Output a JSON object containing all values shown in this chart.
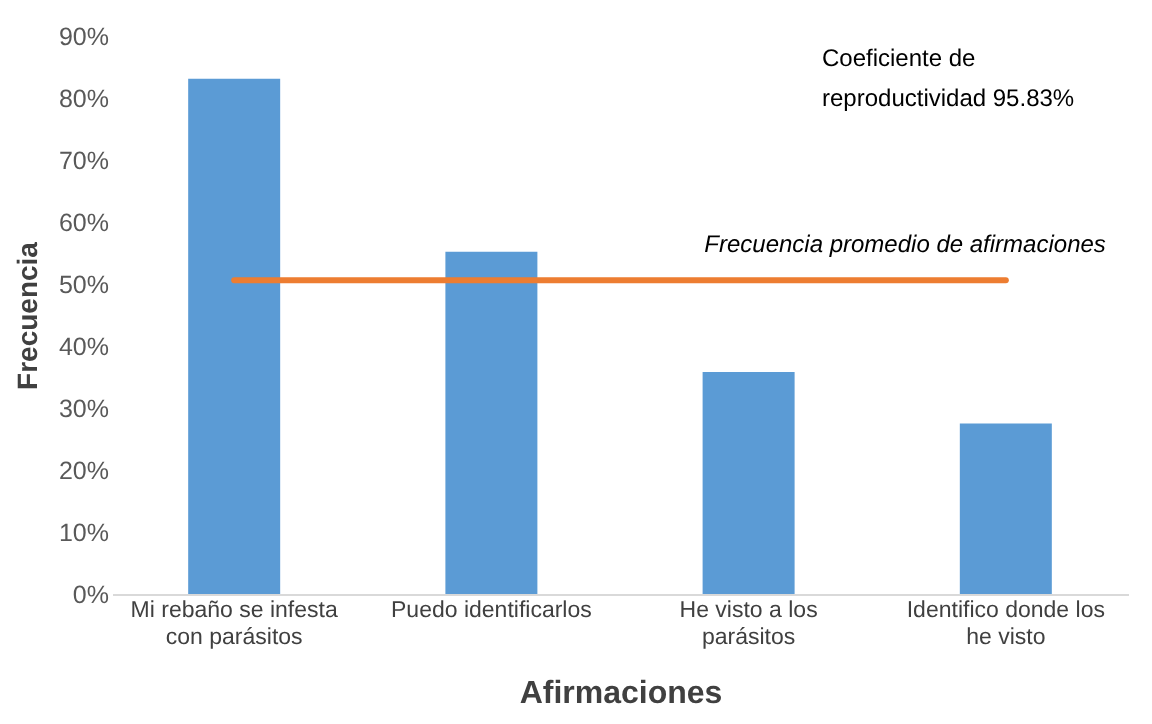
{
  "chart_data": {
    "type": "bar",
    "categories": [
      "Mi rebaño se infesta con parásitos",
      "Puedo identificarlos",
      "He visto a los parásitos",
      "Identifico donde los he visto"
    ],
    "values": [
      83.1,
      55.2,
      35.8,
      27.5
    ],
    "color": "#5b9bd5",
    "xlabel": "Afirmaciones",
    "ylabel": "Frecuencia",
    "ylim": [
      0,
      90
    ],
    "yticks": [
      {
        "value": 0,
        "label": "0%"
      },
      {
        "value": 10,
        "label": "10%"
      },
      {
        "value": 20,
        "label": "20%"
      },
      {
        "value": 30,
        "label": "30%"
      },
      {
        "value": 40,
        "label": "40%"
      },
      {
        "value": 50,
        "label": "50%"
      },
      {
        "value": 60,
        "label": "60%"
      },
      {
        "value": 70,
        "label": "70%"
      },
      {
        "value": 80,
        "label": "80%"
      },
      {
        "value": 90,
        "label": "90%"
      }
    ],
    "ref_lines": [
      {
        "axis": "y",
        "value": 50.6,
        "label": "Frecuencia promedio de afirmaciones",
        "color": "#ed7d31"
      }
    ],
    "annotations": [
      "Coeficiente de reproductividad 95.83%"
    ],
    "grid": false
  }
}
